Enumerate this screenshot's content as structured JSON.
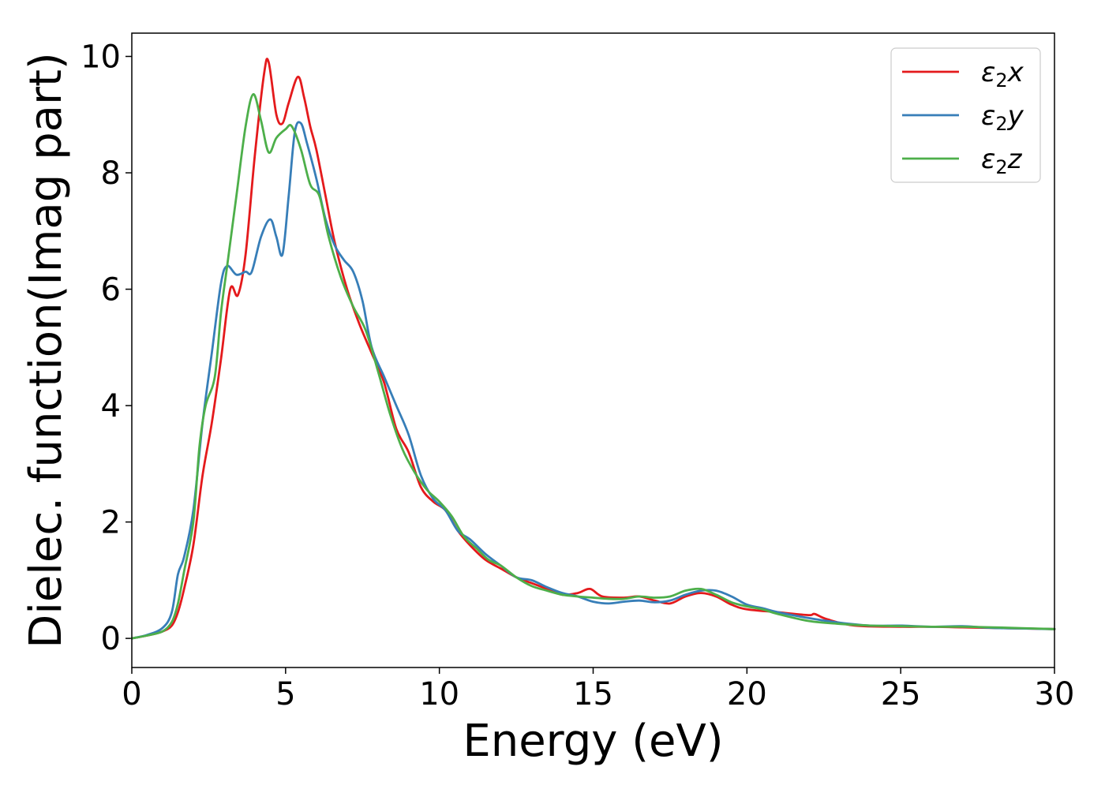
{
  "chart_data": {
    "type": "line",
    "title": "",
    "xlabel": "Energy (eV)",
    "ylabel": "Dielec. function(Imag part)",
    "xlim": [
      0,
      30
    ],
    "ylim": [
      -0.5,
      10.4
    ],
    "xticks": [
      0,
      5,
      10,
      15,
      20,
      25,
      30
    ],
    "yticks": [
      0,
      2,
      4,
      6,
      8,
      10
    ],
    "grid": false,
    "legend_position": "top-right",
    "series": [
      {
        "name": "ε₂x",
        "legend_base": "ε",
        "legend_sub": "2",
        "legend_suffix": "x",
        "color": "#e41a1c",
        "points": [
          [
            0,
            0
          ],
          [
            0.5,
            0.05
          ],
          [
            1.0,
            0.12
          ],
          [
            1.3,
            0.22
          ],
          [
            1.5,
            0.45
          ],
          [
            1.7,
            0.85
          ],
          [
            2.0,
            1.6
          ],
          [
            2.3,
            2.8
          ],
          [
            2.6,
            3.7
          ],
          [
            2.9,
            4.8
          ],
          [
            3.2,
            6.0
          ],
          [
            3.45,
            5.9
          ],
          [
            3.7,
            6.6
          ],
          [
            4.0,
            8.3
          ],
          [
            4.3,
            9.7
          ],
          [
            4.45,
            9.9
          ],
          [
            4.7,
            9.0
          ],
          [
            4.9,
            8.85
          ],
          [
            5.1,
            9.2
          ],
          [
            5.4,
            9.65
          ],
          [
            5.6,
            9.3
          ],
          [
            5.8,
            8.8
          ],
          [
            6.0,
            8.4
          ],
          [
            6.3,
            7.6
          ],
          [
            6.6,
            6.8
          ],
          [
            7.0,
            6.0
          ],
          [
            7.4,
            5.4
          ],
          [
            7.8,
            4.9
          ],
          [
            8.2,
            4.4
          ],
          [
            8.6,
            3.6
          ],
          [
            9.0,
            3.2
          ],
          [
            9.4,
            2.6
          ],
          [
            9.8,
            2.35
          ],
          [
            10.2,
            2.2
          ],
          [
            10.6,
            1.85
          ],
          [
            11.0,
            1.6
          ],
          [
            11.5,
            1.35
          ],
          [
            12.0,
            1.2
          ],
          [
            12.5,
            1.05
          ],
          [
            13.0,
            0.95
          ],
          [
            13.5,
            0.85
          ],
          [
            14.0,
            0.75
          ],
          [
            14.5,
            0.78
          ],
          [
            14.9,
            0.85
          ],
          [
            15.3,
            0.72
          ],
          [
            16.0,
            0.7
          ],
          [
            16.5,
            0.72
          ],
          [
            17.0,
            0.65
          ],
          [
            17.5,
            0.6
          ],
          [
            18.0,
            0.72
          ],
          [
            18.5,
            0.78
          ],
          [
            19.0,
            0.72
          ],
          [
            19.5,
            0.58
          ],
          [
            20.0,
            0.5
          ],
          [
            21.0,
            0.45
          ],
          [
            22.0,
            0.4
          ],
          [
            22.2,
            0.42
          ],
          [
            22.6,
            0.33
          ],
          [
            23.5,
            0.22
          ],
          [
            25.0,
            0.2
          ],
          [
            26.0,
            0.2
          ],
          [
            27.0,
            0.19
          ],
          [
            28.0,
            0.18
          ],
          [
            30.0,
            0.16
          ]
        ]
      },
      {
        "name": "ε₂y",
        "legend_base": "ε",
        "legend_sub": "2",
        "legend_suffix": "y",
        "color": "#377eb8",
        "points": [
          [
            0,
            0
          ],
          [
            0.5,
            0.06
          ],
          [
            1.0,
            0.18
          ],
          [
            1.3,
            0.45
          ],
          [
            1.5,
            1.1
          ],
          [
            1.7,
            1.4
          ],
          [
            2.0,
            2.2
          ],
          [
            2.3,
            3.7
          ],
          [
            2.6,
            4.9
          ],
          [
            2.9,
            6.1
          ],
          [
            3.1,
            6.4
          ],
          [
            3.4,
            6.25
          ],
          [
            3.7,
            6.3
          ],
          [
            3.9,
            6.3
          ],
          [
            4.2,
            6.9
          ],
          [
            4.5,
            7.2
          ],
          [
            4.7,
            6.9
          ],
          [
            4.9,
            6.6
          ],
          [
            5.1,
            7.6
          ],
          [
            5.3,
            8.7
          ],
          [
            5.5,
            8.85
          ],
          [
            5.7,
            8.5
          ],
          [
            6.0,
            7.9
          ],
          [
            6.3,
            7.2
          ],
          [
            6.6,
            6.75
          ],
          [
            6.9,
            6.5
          ],
          [
            7.2,
            6.3
          ],
          [
            7.5,
            5.8
          ],
          [
            7.8,
            5.0
          ],
          [
            8.2,
            4.5
          ],
          [
            8.6,
            4.0
          ],
          [
            9.0,
            3.5
          ],
          [
            9.4,
            2.8
          ],
          [
            9.8,
            2.4
          ],
          [
            10.2,
            2.2
          ],
          [
            10.6,
            1.85
          ],
          [
            11.0,
            1.7
          ],
          [
            11.5,
            1.45
          ],
          [
            12.0,
            1.25
          ],
          [
            12.5,
            1.05
          ],
          [
            13.0,
            1.0
          ],
          [
            13.5,
            0.88
          ],
          [
            14.0,
            0.78
          ],
          [
            14.5,
            0.72
          ],
          [
            15.0,
            0.63
          ],
          [
            15.5,
            0.6
          ],
          [
            16.0,
            0.63
          ],
          [
            16.5,
            0.65
          ],
          [
            17.0,
            0.62
          ],
          [
            17.5,
            0.65
          ],
          [
            18.0,
            0.75
          ],
          [
            18.5,
            0.82
          ],
          [
            19.0,
            0.82
          ],
          [
            19.5,
            0.72
          ],
          [
            20.0,
            0.58
          ],
          [
            20.5,
            0.52
          ],
          [
            21.0,
            0.45
          ],
          [
            22.0,
            0.35
          ],
          [
            23.0,
            0.27
          ],
          [
            24.0,
            0.22
          ],
          [
            25.0,
            0.22
          ],
          [
            26.0,
            0.2
          ],
          [
            27.0,
            0.21
          ],
          [
            28.0,
            0.18
          ],
          [
            30.0,
            0.16
          ]
        ]
      },
      {
        "name": "ε₂z",
        "legend_base": "ε",
        "legend_sub": "2",
        "legend_suffix": "z",
        "color": "#4daf4a",
        "points": [
          [
            0,
            0
          ],
          [
            0.5,
            0.05
          ],
          [
            1.0,
            0.12
          ],
          [
            1.3,
            0.28
          ],
          [
            1.5,
            0.6
          ],
          [
            1.7,
            1.15
          ],
          [
            2.0,
            2.0
          ],
          [
            2.2,
            3.3
          ],
          [
            2.4,
            4.0
          ],
          [
            2.7,
            4.5
          ],
          [
            2.9,
            5.6
          ],
          [
            3.1,
            6.4
          ],
          [
            3.4,
            7.6
          ],
          [
            3.7,
            8.8
          ],
          [
            3.95,
            9.35
          ],
          [
            4.2,
            8.9
          ],
          [
            4.45,
            8.35
          ],
          [
            4.7,
            8.6
          ],
          [
            5.0,
            8.75
          ],
          [
            5.2,
            8.8
          ],
          [
            5.5,
            8.4
          ],
          [
            5.8,
            7.8
          ],
          [
            6.1,
            7.6
          ],
          [
            6.4,
            6.9
          ],
          [
            6.8,
            6.2
          ],
          [
            7.2,
            5.7
          ],
          [
            7.6,
            5.3
          ],
          [
            8.0,
            4.6
          ],
          [
            8.4,
            3.85
          ],
          [
            8.8,
            3.25
          ],
          [
            9.2,
            2.85
          ],
          [
            9.6,
            2.55
          ],
          [
            10.0,
            2.35
          ],
          [
            10.4,
            2.1
          ],
          [
            10.8,
            1.75
          ],
          [
            11.2,
            1.55
          ],
          [
            11.6,
            1.35
          ],
          [
            12.0,
            1.25
          ],
          [
            12.5,
            1.05
          ],
          [
            13.0,
            0.9
          ],
          [
            13.5,
            0.82
          ],
          [
            14.0,
            0.75
          ],
          [
            14.5,
            0.72
          ],
          [
            15.0,
            0.7
          ],
          [
            15.5,
            0.68
          ],
          [
            16.0,
            0.68
          ],
          [
            16.5,
            0.72
          ],
          [
            17.0,
            0.7
          ],
          [
            17.5,
            0.72
          ],
          [
            18.0,
            0.82
          ],
          [
            18.5,
            0.85
          ],
          [
            19.0,
            0.75
          ],
          [
            19.5,
            0.62
          ],
          [
            20.0,
            0.55
          ],
          [
            20.5,
            0.5
          ],
          [
            21.0,
            0.42
          ],
          [
            22.0,
            0.3
          ],
          [
            23.0,
            0.25
          ],
          [
            24.0,
            0.22
          ],
          [
            25.0,
            0.21
          ],
          [
            26.0,
            0.2
          ],
          [
            27.0,
            0.2
          ],
          [
            28.0,
            0.19
          ],
          [
            30.0,
            0.16
          ]
        ]
      }
    ]
  }
}
